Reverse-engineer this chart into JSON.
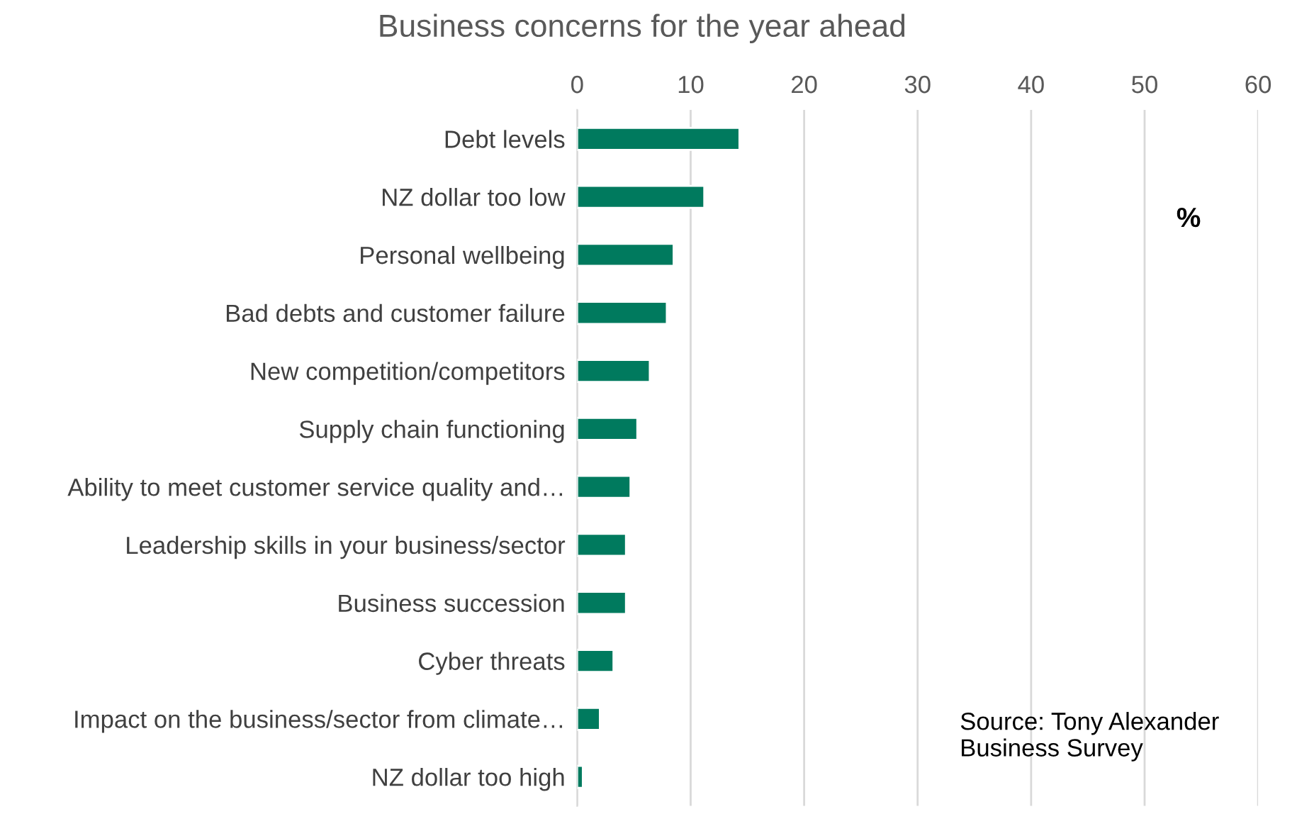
{
  "chart_data": {
    "type": "bar",
    "orientation": "horizontal",
    "title": "Business concerns for the year ahead",
    "categories": [
      "Debt levels",
      "NZ dollar too low",
      "Personal wellbeing",
      "Bad debts and customer failure",
      "New competition/competitors",
      "Supply chain functioning",
      "Ability to meet customer service quality and…",
      "Leadership skills in your business/sector",
      "Business succession",
      "Cyber threats",
      "Impact on the business/sector from climate…",
      "NZ dollar too high"
    ],
    "series": [
      {
        "color": "#007a5e",
        "values": [
          14.3,
          11.2,
          8.5,
          7.9,
          6.4,
          5.3,
          4.7,
          4.3,
          4.3,
          3.2,
          2.0,
          0.5
        ]
      }
    ],
    "xlim": [
      0,
      60
    ],
    "xticks": [
      0,
      10,
      20,
      30,
      40,
      50,
      60
    ],
    "grid": "x",
    "annotations": [
      "%",
      "Source: Tony Alexander Business Survey"
    ]
  }
}
